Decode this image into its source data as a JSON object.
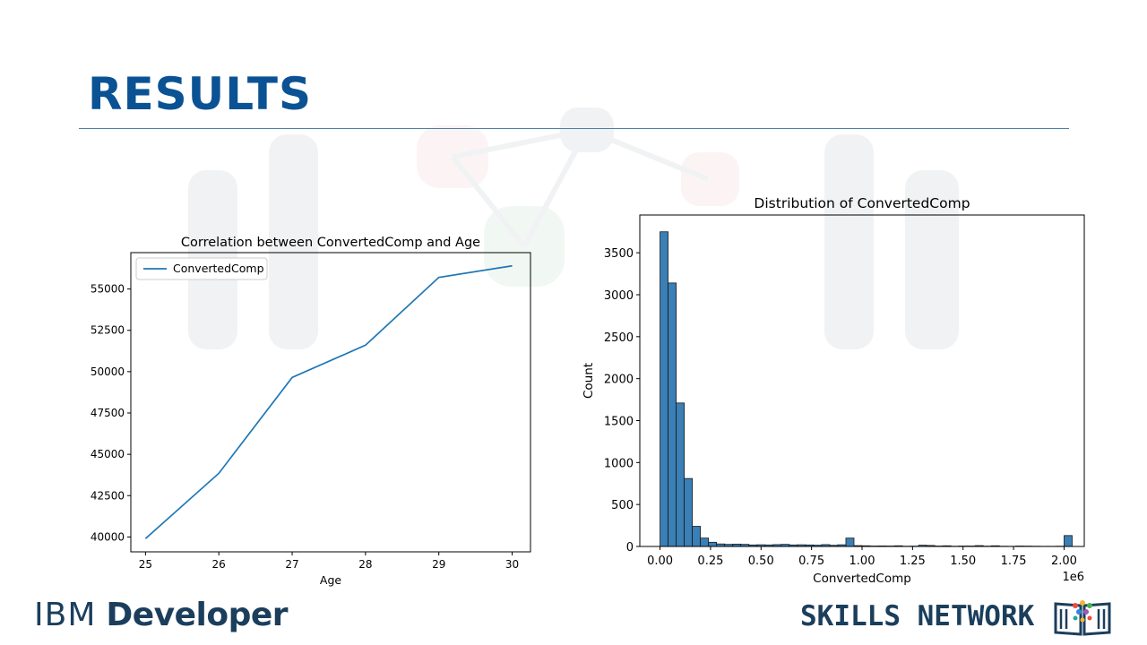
{
  "slide": {
    "title": "RESULTS"
  },
  "footer": {
    "brand_left_ibm": "IBM",
    "brand_left_dev": "Developer",
    "brand_right": "SKILLS NETWORK",
    "logo_icon": "open-book-icon"
  },
  "chart_data": [
    {
      "type": "line",
      "title": "Correlation between ConvertedComp and Age",
      "xlabel": "Age",
      "ylabel": "",
      "x": [
        25,
        26,
        27,
        28,
        29,
        30
      ],
      "series": [
        {
          "name": "ConvertedComp",
          "values": [
            39900,
            43850,
            49650,
            51600,
            55700,
            56400
          ],
          "color": "#1f77b4"
        }
      ],
      "xticks": [
        "25",
        "26",
        "27",
        "28",
        "29",
        "30"
      ],
      "yticks": [
        "40000",
        "42500",
        "45000",
        "47500",
        "50000",
        "52500",
        "55000"
      ],
      "ytick_values": [
        40000,
        42500,
        45000,
        47500,
        50000,
        52500,
        55000
      ],
      "xlim": [
        24.8,
        30.25
      ],
      "ylim": [
        39100,
        57200
      ],
      "legend": "top-left",
      "grid": false
    },
    {
      "type": "bar",
      "title": "Distribution of ConvertedComp",
      "xlabel": "ConvertedComp",
      "ylabel": "Count",
      "x_offset_label": "1e6",
      "bin_start": 0,
      "bin_width": 0.04,
      "values": [
        3750,
        3140,
        1710,
        810,
        240,
        100,
        50,
        30,
        25,
        28,
        25,
        18,
        20,
        18,
        22,
        25,
        18,
        20,
        18,
        15,
        22,
        14,
        20,
        100,
        10,
        8,
        5,
        6,
        5,
        8,
        3,
        4,
        15,
        12,
        5,
        8,
        3,
        5,
        5,
        10,
        4,
        8,
        3,
        2,
        5,
        4,
        3,
        2,
        2,
        3,
        130
      ],
      "xticks": [
        "0.00",
        "0.25",
        "0.50",
        "0.75",
        "1.00",
        "1.25",
        "1.50",
        "1.75",
        "2.00"
      ],
      "xtick_values": [
        0,
        0.25,
        0.5,
        0.75,
        1.0,
        1.25,
        1.5,
        1.75,
        2.0
      ],
      "yticks": [
        "0",
        "500",
        "1000",
        "1500",
        "2000",
        "2500",
        "3000",
        "3500"
      ],
      "ytick_values": [
        0,
        500,
        1000,
        1500,
        2000,
        2500,
        3000,
        3500
      ],
      "xlim": [
        -0.1,
        2.1
      ],
      "ylim": [
        0,
        3950
      ],
      "bar_color": "#3a7fb5",
      "grid": false
    }
  ]
}
